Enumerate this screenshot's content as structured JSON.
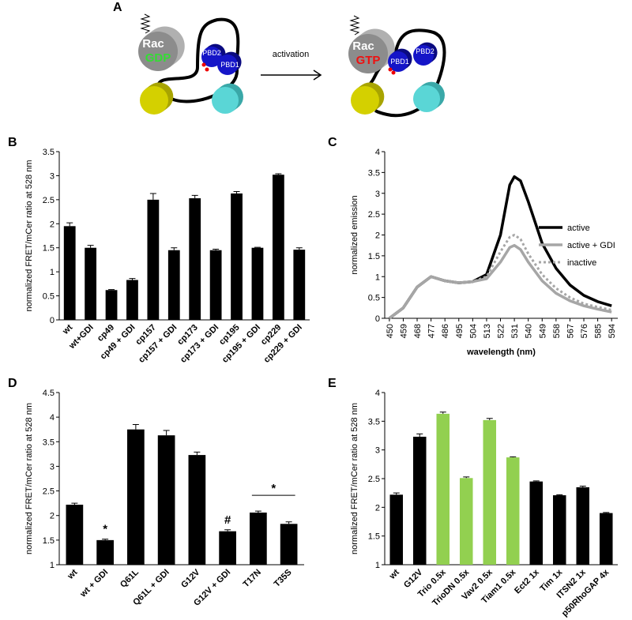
{
  "diagram": {
    "label": "A",
    "left_rac": "Rac",
    "left_gdp": "GDP",
    "left_pbd2": "PBD2",
    "left_pbd1": "PBD1",
    "arrow": "activation",
    "right_rac": "Rac",
    "right_gtp": "GTP",
    "right_pbd1": "PBD1",
    "right_pbd2": "PBD2"
  },
  "chart_data": [
    {
      "type": "bar",
      "label": "B",
      "y_label": "normalized FRET/mCer ratio at 528 nm",
      "categories": [
        "wt",
        "wt+GDI",
        "cp49",
        "cp49 + GDI",
        "cp157",
        "cp157 + GDI",
        "cp173",
        "cp173 + GDI",
        "cp195",
        "cp195 + GDI",
        "cp229",
        "cp229 + GDI"
      ],
      "values": [
        1.95,
        1.5,
        0.62,
        0.83,
        2.5,
        1.45,
        2.53,
        1.45,
        2.63,
        1.5,
        3.02,
        1.46
      ],
      "errors": [
        0.07,
        0.05,
        0.01,
        0.03,
        0.13,
        0.05,
        0.06,
        0.02,
        0.04,
        0.01,
        0.02,
        0.04
      ],
      "color": "#000000",
      "ylim": [
        0,
        3.5
      ],
      "yticks": [
        0,
        0.5,
        1,
        1.5,
        2,
        2.5,
        3,
        3.5
      ]
    },
    {
      "type": "line",
      "label": "C",
      "x_label": "wavelength (nm)",
      "y_label": "normalized emission",
      "x": [
        450,
        459,
        468,
        477,
        486,
        495,
        504,
        513,
        522,
        528,
        531,
        535,
        540,
        549,
        558,
        567,
        576,
        585,
        594
      ],
      "series": [
        {
          "name": "active",
          "color": "#000000",
          "dashed": false,
          "values": [
            0,
            0.25,
            0.75,
            1.0,
            0.9,
            0.85,
            0.88,
            1.05,
            2.0,
            3.2,
            3.4,
            3.3,
            2.8,
            1.8,
            1.2,
            0.8,
            0.55,
            0.4,
            0.3
          ]
        },
        {
          "name": "active + GDI",
          "color": "#a6a6a6",
          "dashed": false,
          "values": [
            0,
            0.25,
            0.75,
            1.0,
            0.9,
            0.85,
            0.88,
            0.95,
            1.35,
            1.7,
            1.75,
            1.65,
            1.35,
            0.9,
            0.6,
            0.42,
            0.3,
            0.22,
            0.15
          ]
        },
        {
          "name": "inactive",
          "color": "#a6a6a6",
          "dashed": true,
          "values": [
            0,
            0.25,
            0.75,
            1.0,
            0.9,
            0.85,
            0.88,
            1.0,
            1.6,
            1.95,
            2.0,
            1.9,
            1.55,
            1.05,
            0.72,
            0.5,
            0.35,
            0.27,
            0.2
          ]
        }
      ],
      "xlim": [
        447,
        598
      ],
      "xticks": [
        450,
        459,
        468,
        477,
        486,
        495,
        504,
        513,
        522,
        531,
        540,
        549,
        558,
        567,
        576,
        585,
        594
      ],
      "ylim": [
        0,
        4
      ],
      "yticks": [
        0,
        0.5,
        1,
        1.5,
        2,
        2.5,
        3,
        3.5,
        4
      ],
      "legend": "right"
    },
    {
      "type": "bar",
      "label": "D",
      "y_label": "normalized FRET/mCer ratio at 528 nm",
      "categories": [
        "wt",
        "wt + GDI",
        "Q61L",
        "Q61L + GDI",
        "G12V",
        "G12V + GDI",
        "T17N",
        "T35S"
      ],
      "values": [
        2.22,
        1.5,
        3.75,
        3.63,
        3.23,
        1.68,
        2.06,
        1.83
      ],
      "errors": [
        0.03,
        0.02,
        0.1,
        0.1,
        0.06,
        0.03,
        0.03,
        0.04
      ],
      "annotations": [
        null,
        "*",
        null,
        null,
        null,
        "#",
        null,
        null
      ],
      "bracket_annotation": "*",
      "color": "#000000",
      "ylim": [
        1,
        4.5
      ],
      "yticks": [
        1,
        1.5,
        2,
        2.5,
        3,
        3.5,
        4,
        4.5
      ]
    },
    {
      "type": "bar",
      "label": "E",
      "y_label": "normalized FRET/mCer ratio at 528 nm",
      "categories": [
        "wt",
        "G12V",
        "Trio 0.5x",
        "TrioDN 0.5x",
        "Vav2 0.5x",
        "Tiam1 0.5x",
        "Ect2 1x",
        "Tim 1x",
        "ITSN2 1x",
        "p50RhoGAP 4x"
      ],
      "values": [
        2.22,
        3.23,
        3.63,
        2.51,
        3.52,
        2.87,
        2.45,
        2.21,
        2.35,
        1.9
      ],
      "errors": [
        0.03,
        0.05,
        0.03,
        0.02,
        0.03,
        0.01,
        0.01,
        0.01,
        0.02,
        0.01
      ],
      "colors": [
        "#000000",
        "#000000",
        "#92d050",
        "#92d050",
        "#92d050",
        "#92d050",
        "#000000",
        "#000000",
        "#000000",
        "#000000"
      ],
      "ylim": [
        1,
        4
      ],
      "yticks": [
        1,
        1.5,
        2,
        2.5,
        3,
        3.5,
        4
      ]
    }
  ]
}
